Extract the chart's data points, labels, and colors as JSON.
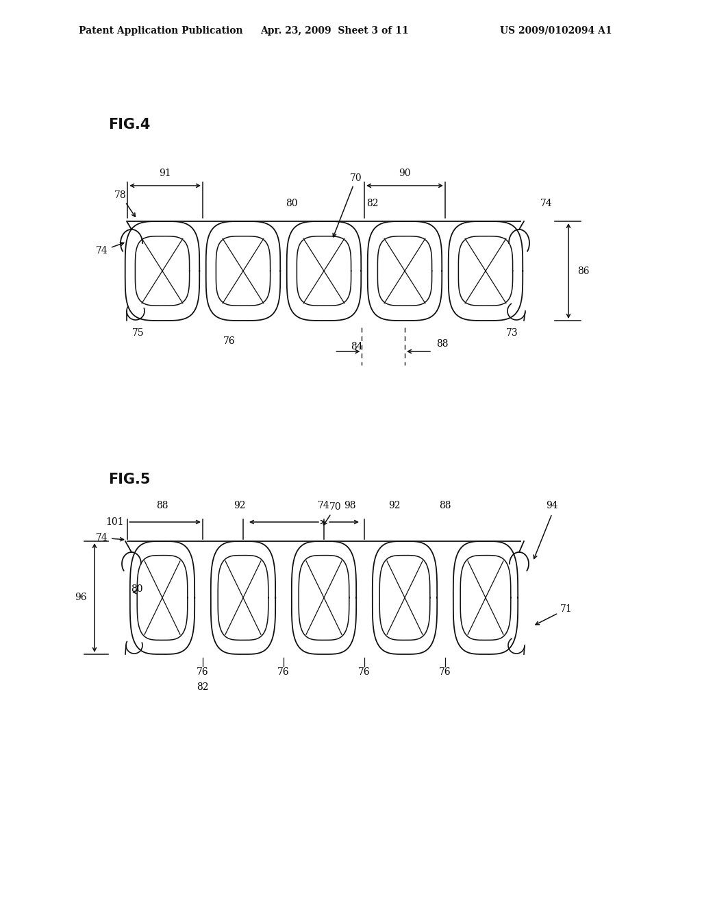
{
  "bg_color": "#ffffff",
  "header_left": "Patent Application Publication",
  "header_mid": "Apr. 23, 2009  Sheet 3 of 11",
  "header_right": "US 2009/0102094 A1",
  "fig4_label": "FIG.4",
  "fig5_label": "FIG.5"
}
